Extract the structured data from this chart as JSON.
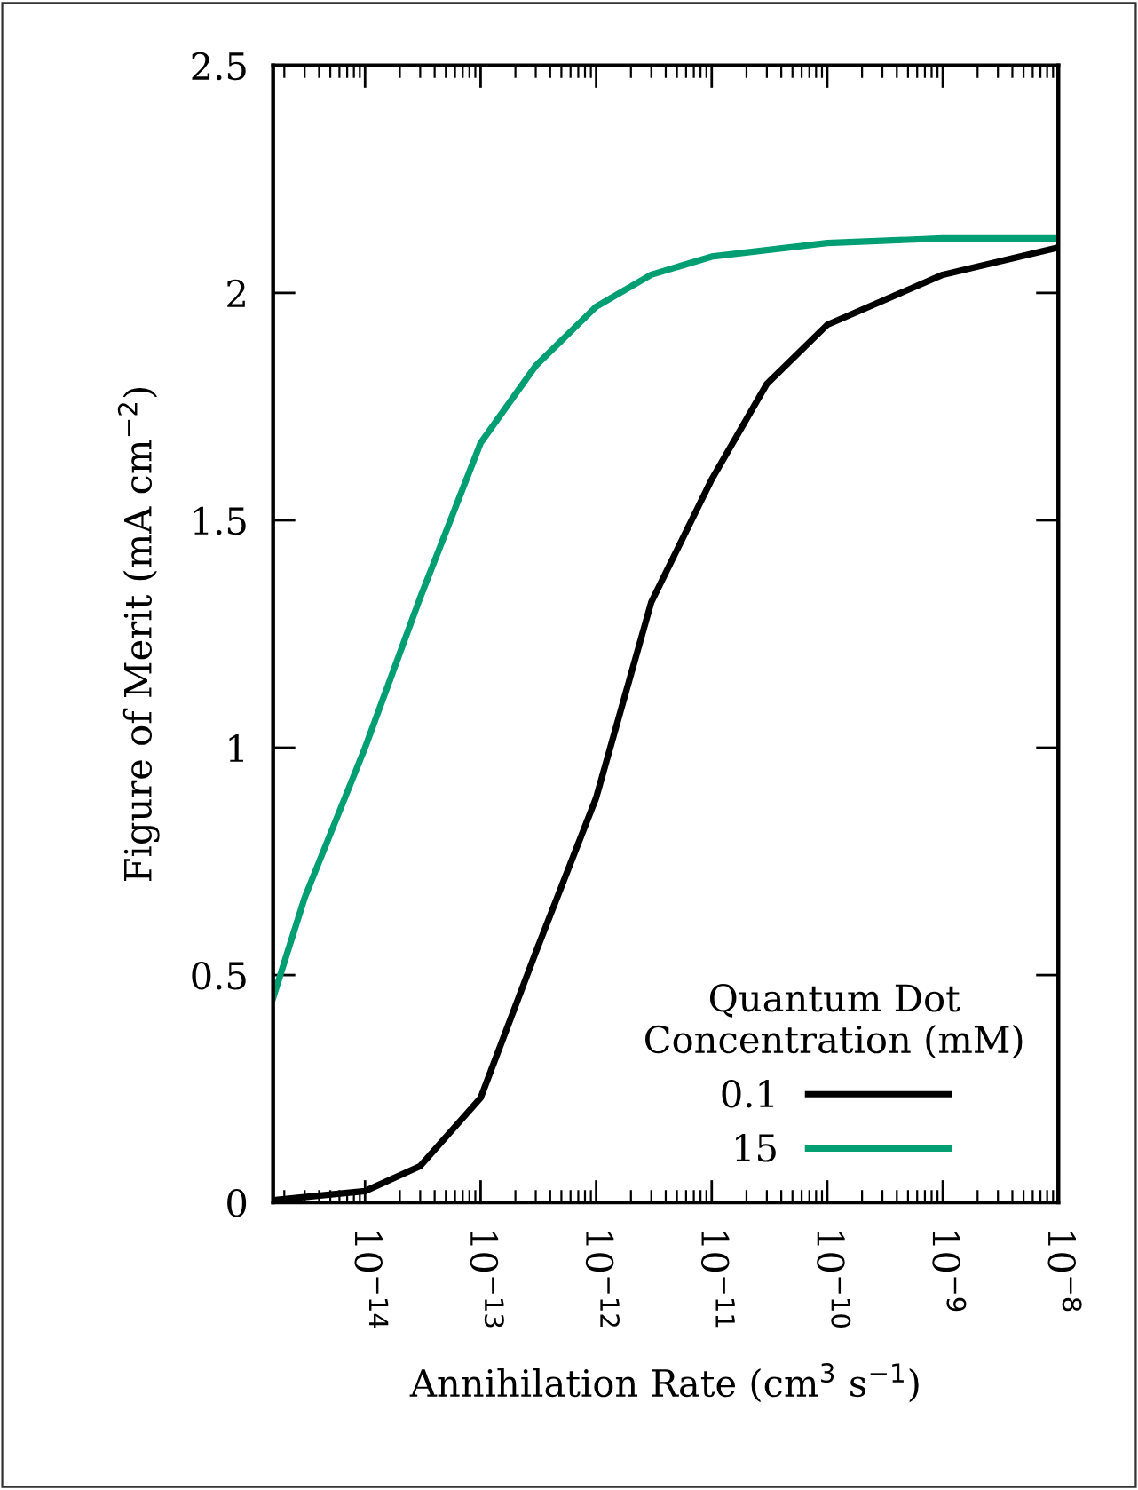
{
  "chart_data": {
    "type": "line",
    "xlabel": "Annihilation Rate (cm$^{3}$ s$^{−1}$)",
    "ylabel": "Figure of Merit (mA cm$^{−2}$)",
    "legend_title": "Quantum Dot\nConcentration (mM)",
    "legend": "bottom right",
    "log": "x",
    "grid": false,
    "line_style": "solid",
    "marker": "none",
    "xlim": [
      1.6e-15,
      1e-08
    ],
    "ylim": [
      0,
      2.5
    ],
    "xticks": [
      {
        "value": 1e-14,
        "label": "10$^{−14}$"
      },
      {
        "value": 1e-13,
        "label": "10$^{−13}$"
      },
      {
        "value": 1e-12,
        "label": "10$^{−12}$"
      },
      {
        "value": 1e-11,
        "label": "10$^{−11}$"
      },
      {
        "value": 1e-10,
        "label": "10$^{−10}$"
      },
      {
        "value": 1e-09,
        "label": "10$^{−9}$"
      },
      {
        "value": 1e-08,
        "label": "10$^{−8}$"
      }
    ],
    "yticks": [
      0,
      0.5,
      1,
      1.5,
      2,
      2.5
    ],
    "series": [
      {
        "name": "0.1",
        "color": "#000000",
        "x": [
          1.6e-15,
          1e-14,
          3e-14,
          1e-13,
          3e-13,
          1e-12,
          3e-12,
          1e-11,
          3e-11,
          1e-10,
          1e-09,
          1e-08
        ],
        "values": [
          0.005,
          0.025,
          0.08,
          0.23,
          0.55,
          0.89,
          1.32,
          1.59,
          1.8,
          1.93,
          2.04,
          2.1
        ]
      },
      {
        "name": "15",
        "color": "#009e73",
        "x": [
          1.6e-15,
          3e-15,
          1e-14,
          3e-14,
          1e-13,
          3e-13,
          1e-12,
          3e-12,
          1e-11,
          1e-10,
          1e-09,
          1e-08
        ],
        "values": [
          0.45,
          0.67,
          1.0,
          1.33,
          1.67,
          1.84,
          1.97,
          2.04,
          2.08,
          2.11,
          2.12,
          2.12
        ]
      }
    ]
  }
}
